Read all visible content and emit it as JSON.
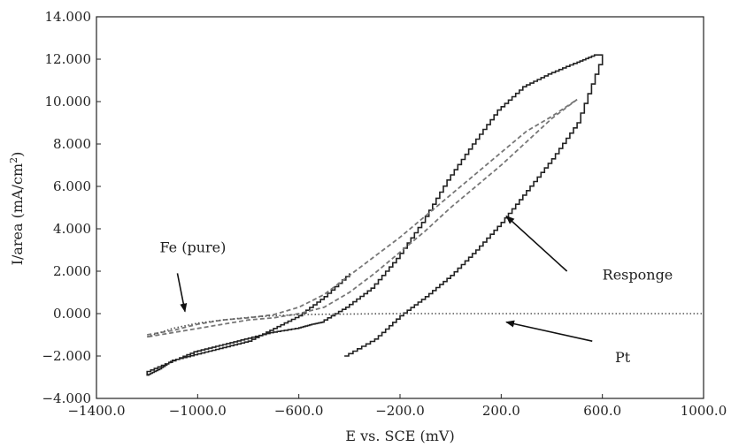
{
  "chart_data": {
    "type": "line",
    "title": "",
    "xlabel": "E vs. SCE (mV)",
    "ylabel_main": "I/area (mA/cm",
    "ylabel_sup": "2",
    "ylabel_end": ")",
    "xlim": [
      -1400,
      1000
    ],
    "ylim": [
      -4,
      14
    ],
    "x_ticks": [
      -1400,
      -1000,
      -600,
      -200,
      200,
      600,
      1000
    ],
    "x_tick_labels": [
      "−1400.0",
      "−1000.0",
      "−600.0",
      "−200.0",
      "200.0",
      "600.0",
      "1000.0"
    ],
    "y_ticks": [
      -4,
      -2,
      0,
      2,
      4,
      6,
      8,
      10,
      12,
      14
    ],
    "y_tick_labels": [
      "−4.000",
      "−2.000",
      "0.000",
      "2.000",
      "4.000",
      "6.000",
      "8.000",
      "10.000",
      "12.000",
      "14.000"
    ],
    "grid": false,
    "legend": "none",
    "series": [
      {
        "name": "Responge",
        "style": "solid-step",
        "color": "#222222",
        "x": [
          -420,
          -300,
          -200,
          -100,
          0,
          100,
          200,
          300,
          400,
          500,
          600,
          580,
          500,
          400,
          300,
          200,
          100,
          0,
          -100,
          -200,
          -300,
          -400,
          -500,
          -540,
          -600,
          -700,
          -800,
          -900,
          -1000,
          -1100,
          -1200,
          -1200,
          -1150,
          -1100,
          -1000,
          -900,
          -800,
          -700,
          -600,
          -500,
          -400
        ],
        "y": [
          -2.0,
          -1.2,
          -0.1,
          0.8,
          1.8,
          3.0,
          4.3,
          5.8,
          7.3,
          9.0,
          12.2,
          12.2,
          11.8,
          11.3,
          10.7,
          9.6,
          8.0,
          6.3,
          4.3,
          2.6,
          1.2,
          0.3,
          -0.4,
          -0.5,
          -0.7,
          -0.9,
          -1.2,
          -1.5,
          -1.8,
          -2.3,
          -2.8,
          -2.9,
          -2.6,
          -2.2,
          -1.9,
          -1.6,
          -1.3,
          -0.7,
          -0.1,
          0.8,
          1.9
        ]
      },
      {
        "name": "Fe (pure)",
        "style": "dashed",
        "color": "#777777",
        "x": [
          -1200,
          -1100,
          -1000,
          -900,
          -800,
          -700,
          -600,
          -500,
          -400,
          -300,
          -200,
          -100,
          0,
          100,
          200,
          300,
          400,
          500,
          400,
          300,
          200,
          100,
          0,
          -100,
          -200,
          -300,
          -400,
          -500,
          -600,
          -700,
          -800,
          -900,
          -1000,
          -1100,
          -1200
        ],
        "y": [
          -1.0,
          -0.8,
          -0.5,
          -0.3,
          -0.2,
          -0.05,
          0.3,
          0.9,
          1.8,
          2.7,
          3.6,
          4.6,
          5.6,
          6.6,
          7.6,
          8.6,
          9.3,
          10.1,
          9.2,
          8.1,
          7.0,
          6.0,
          5.0,
          3.9,
          2.9,
          1.9,
          1.0,
          0.3,
          0.0,
          -0.2,
          -0.3,
          -0.5,
          -0.7,
          -0.9,
          -1.1
        ]
      },
      {
        "name": "Pt",
        "style": "dotted",
        "color": "#555555",
        "x": [
          -1200,
          -1100,
          -1000,
          -900,
          -800,
          -700,
          -600,
          -500,
          -400,
          -300,
          -200,
          -100,
          0,
          200,
          400,
          600,
          800,
          1000
        ],
        "y": [
          -1.1,
          -0.7,
          -0.45,
          -0.3,
          -0.18,
          -0.1,
          -0.05,
          -0.03,
          -0.02,
          -0.01,
          0.0,
          0.0,
          0.0,
          0.0,
          0.0,
          0.0,
          0.0,
          0.0
        ]
      }
    ],
    "annotations": [
      {
        "text": "Fe (pure)",
        "x": -1150,
        "y": 2.9
      },
      {
        "text": "Responge",
        "x": 600,
        "y": 1.6
      },
      {
        "text": "Pt",
        "x": 650,
        "y": -2.3
      }
    ],
    "arrows": [
      {
        "from": [
          -1080,
          1.9
        ],
        "to": [
          -1050,
          0.1
        ]
      },
      {
        "from": [
          460,
          2.0
        ],
        "to": [
          220,
          4.6
        ]
      },
      {
        "from": [
          560,
          -1.3
        ],
        "to": [
          220,
          -0.4
        ]
      }
    ]
  }
}
